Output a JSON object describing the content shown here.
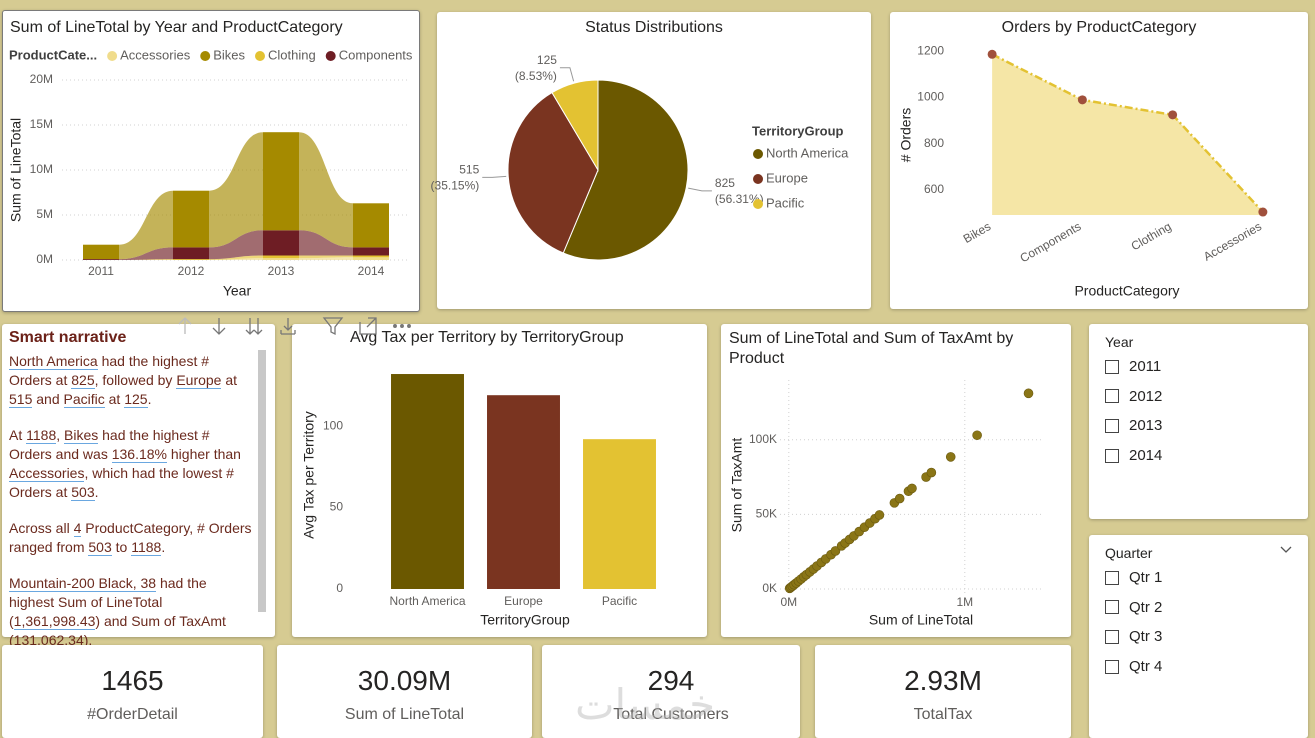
{
  "chart_data": [
    {
      "type": "ribbon",
      "title": "Sum of LineTotal by Year and ProductCategory",
      "legend_title": "ProductCate...",
      "x_label": "Year",
      "y_label": "Sum of LineTotal",
      "categories": [
        "2011",
        "2012",
        "2013",
        "2014"
      ],
      "series": [
        {
          "name": "Accessories",
          "color": "#f0dc8c",
          "values": [
            0,
            0,
            200000,
            300000
          ]
        },
        {
          "name": "Bikes",
          "color": "#a58a00",
          "values": [
            1600000,
            6300000,
            10900000,
            4900000
          ]
        },
        {
          "name": "Clothing",
          "color": "#e3c232",
          "values": [
            0,
            100000,
            300000,
            200000
          ]
        },
        {
          "name": "Components",
          "color": "#6e1d24",
          "values": [
            100000,
            1300000,
            2800000,
            900000
          ]
        }
      ],
      "ylim": [
        0,
        20000000
      ],
      "yticks": [
        {
          "value": 0,
          "label": "0M"
        },
        {
          "value": 5000000,
          "label": "5M"
        },
        {
          "value": 10000000,
          "label": "10M"
        },
        {
          "value": 15000000,
          "label": "15M"
        },
        {
          "value": 20000000,
          "label": "20M"
        }
      ],
      "grid": true
    },
    {
      "type": "pie",
      "title": "Status Distributions",
      "legend_title": "TerritoryGroup",
      "categories": [
        "North America",
        "Europe",
        "Pacific"
      ],
      "values": [
        825,
        515,
        125
      ],
      "percent_labels": [
        "(56.31%)",
        "(35.15%)",
        "(8.53%)"
      ],
      "colors": [
        "#6b5800",
        "#7a3420",
        "#e3c232"
      ]
    },
    {
      "type": "area",
      "title": "Orders by ProductCategory",
      "x_label": "ProductCategory",
      "y_label": "# Orders",
      "categories": [
        "Bikes",
        "Components",
        "Clothing",
        "Accessories"
      ],
      "values": [
        1188,
        990,
        925,
        503
      ],
      "color": "#e3c232",
      "fill": "#f5e6a6",
      "marker_color": "#a0503c",
      "ylim": [
        490,
        1250
      ],
      "yticks": [
        600,
        800,
        1000,
        1200
      ],
      "grid": false
    },
    {
      "type": "bar",
      "title": "Avg Tax per Territory by TerritoryGroup",
      "x_label": "TerritoryGroup",
      "y_label": "Avg Tax per Territory",
      "categories": [
        "North America",
        "Europe",
        "Pacific"
      ],
      "values": [
        132,
        119,
        92
      ],
      "colors": [
        "#6b5800",
        "#7a3420",
        "#e3c232"
      ],
      "ylim": [
        0,
        140
      ],
      "yticks": [
        0,
        50,
        100
      ],
      "grid": false
    },
    {
      "type": "scatter",
      "title": "Sum of LineTotal and Sum of TaxAmt by Product",
      "x_label": "Sum of LineTotal",
      "y_label": "Sum of TaxAmt",
      "x": [
        5000,
        12000,
        20000,
        30000,
        42000,
        55000,
        70000,
        85000,
        100000,
        120000,
        140000,
        160000,
        185000,
        210000,
        240000,
        265000,
        300000,
        320000,
        345000,
        370000,
        400000,
        430000,
        460000,
        490000,
        515000,
        600000,
        630000,
        680000,
        700000,
        780000,
        810000,
        920000,
        1070000,
        1361998.43
      ],
      "values": [
        480,
        1150,
        1900,
        2900,
        4000,
        5300,
        6700,
        8200,
        9600,
        11500,
        13400,
        15400,
        17800,
        20200,
        23000,
        25500,
        28900,
        30800,
        33200,
        35600,
        38500,
        41400,
        44200,
        47100,
        49600,
        57700,
        60600,
        65500,
        67400,
        75000,
        78000,
        88500,
        103000,
        131062.34
      ],
      "color": "#8a7516",
      "xlim": [
        -50000,
        1450000
      ],
      "xticks": [
        {
          "value": 0,
          "label": "0M"
        },
        {
          "value": 1000000,
          "label": "1M"
        }
      ],
      "ylim": [
        -4000,
        140000
      ],
      "yticks": [
        {
          "value": 0,
          "label": "0K"
        },
        {
          "value": 50000,
          "label": "50K"
        },
        {
          "value": 100000,
          "label": "100K"
        }
      ],
      "grid": true
    }
  ],
  "narrative": {
    "title": "Smart narrative",
    "paragraphs": [
      [
        {
          "text": "North America",
          "underline": true
        },
        " had the highest # Orders at ",
        {
          "text": "825",
          "underline": true
        },
        ", followed by ",
        {
          "text": "Europe",
          "underline": true
        },
        " at ",
        {
          "text": "515",
          "underline": true
        },
        " and ",
        {
          "text": "Pacific",
          "underline": true
        },
        " at ",
        {
          "text": "125",
          "underline": true
        },
        "."
      ],
      [
        "At ",
        {
          "text": "1188",
          "underline": true
        },
        ", ",
        {
          "text": "Bikes",
          "underline": true
        },
        " had the highest # Orders and was ",
        {
          "text": "136.18%",
          "underline": true
        },
        " higher than ",
        {
          "text": "Accessories",
          "underline": true
        },
        ", which had the lowest # Orders at ",
        {
          "text": "503",
          "underline": true
        },
        "."
      ],
      [
        "Across all ",
        {
          "text": "4",
          "underline": true
        },
        " ProductCategory, # Orders ranged from ",
        {
          "text": "503",
          "underline": true
        },
        " to ",
        {
          "text": "1188",
          "underline": true
        },
        "."
      ],
      [
        {
          "text": "Mountain-200 Black, 38",
          "underline": true
        },
        " had the highest Sum of LineTotal (",
        {
          "text": "1,361,998.43",
          "underline": true
        },
        ") and Sum of TaxAmt (",
        {
          "text": "131,062.34",
          "underline": true
        },
        ")."
      ]
    ]
  },
  "slicers": [
    {
      "title": "Year",
      "items": [
        "2011",
        "2012",
        "2013",
        "2014"
      ]
    },
    {
      "title": "Quarter",
      "items": [
        "Qtr 1",
        "Qtr 2",
        "Qtr 3",
        "Qtr 4"
      ]
    }
  ],
  "cards": [
    {
      "value": "1465",
      "label": "#OrderDetail"
    },
    {
      "value": "30.09M",
      "label": "Sum of LineTotal"
    },
    {
      "value": "294",
      "label": "Total Customers"
    },
    {
      "value": "2.93M",
      "label": "TotalTax"
    }
  ],
  "watermark": "خمسات"
}
